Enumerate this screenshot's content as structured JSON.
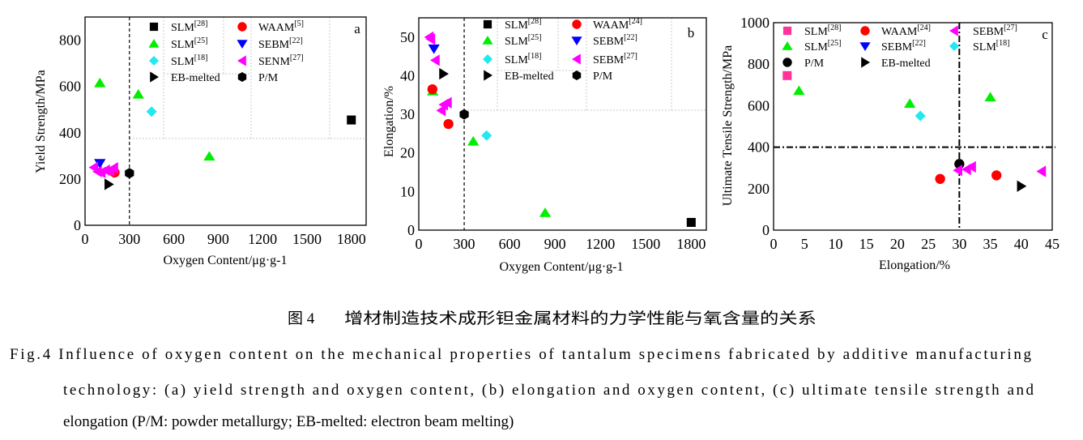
{
  "chart_data": [
    {
      "type": "scatter",
      "panel": "a",
      "xlabel": "Oxygen Content/μg·g-1",
      "ylabel": "Yield Strength/MPa",
      "xlim": [
        0,
        1900
      ],
      "ylim": [
        0,
        900
      ],
      "xticks": [
        "0",
        "300",
        "600",
        "900",
        "1200",
        "1500",
        "1800"
      ],
      "xtick_values": [
        0,
        300,
        600,
        900,
        1200,
        1500,
        1800
      ],
      "yticks": [
        "0",
        "200",
        "400",
        "600",
        "800"
      ],
      "ytick_values": [
        0,
        200,
        400,
        600,
        800
      ],
      "ref_lines": [
        {
          "axis": "x",
          "value": 300,
          "style": "dashed"
        }
      ],
      "legend_columns": [
        [
          0,
          1,
          2,
          3
        ],
        [
          4,
          5,
          6,
          7
        ]
      ],
      "series": [
        {
          "name": "SLM",
          "ref": "[28]",
          "marker": "square",
          "color": "#000000",
          "points": [
            [
              1800,
              455
            ]
          ]
        },
        {
          "name": "SLM",
          "ref": "[25]",
          "marker": "triangle-up",
          "color": "#00ee00",
          "points": [
            [
              100,
              615
            ],
            [
              360,
              566
            ],
            [
              840,
              298
            ]
          ]
        },
        {
          "name": "SLM",
          "ref": "[18]",
          "marker": "diamond",
          "color": "#22e8f2",
          "points": [
            [
              450,
              491
            ]
          ]
        },
        {
          "name": "EB-melted",
          "ref": "",
          "marker": "triangle-right",
          "color": "#000000",
          "points": [
            [
              160,
              177
            ]
          ]
        },
        {
          "name": "WAAM",
          "ref": "[5]",
          "marker": "circle",
          "color": "#ff0000",
          "points": [
            [
              200,
              228
            ]
          ]
        },
        {
          "name": "SEBM",
          "ref": "[22]",
          "marker": "triangle-down",
          "color": "#0000ff",
          "points": [
            [
              100,
              268
            ]
          ]
        },
        {
          "name": "SENM",
          "ref": "[27]",
          "marker": "triangle-left",
          "color": "#ff00ff",
          "points": [
            [
              60,
              250
            ],
            [
              85,
              232
            ],
            [
              110,
              228
            ],
            [
              140,
              238
            ],
            [
              170,
              235
            ],
            [
              195,
              248
            ]
          ]
        },
        {
          "name": "P/M",
          "ref": "",
          "marker": "hexagon",
          "color": "#000000",
          "points": [
            [
              300,
              225
            ]
          ]
        }
      ]
    },
    {
      "type": "scatter",
      "panel": "b",
      "xlabel": "Oxygen Content/μg·g-1",
      "ylabel": "Elongation/%",
      "xlim": [
        0,
        1900
      ],
      "ylim": [
        0,
        55
      ],
      "xticks": [
        "0",
        "300",
        "600",
        "900",
        "1200",
        "1500",
        "1800"
      ],
      "xtick_values": [
        0,
        300,
        600,
        900,
        1200,
        1500,
        1800
      ],
      "yticks": [
        "0",
        "10",
        "20",
        "30",
        "40",
        "50"
      ],
      "ytick_values": [
        0,
        10,
        20,
        30,
        40,
        50
      ],
      "ref_lines": [
        {
          "axis": "x",
          "value": 300,
          "style": "dashed"
        }
      ],
      "legend_columns": [
        [
          0,
          1,
          2,
          3
        ],
        [
          4,
          5,
          6,
          7
        ]
      ],
      "series": [
        {
          "name": "SLM",
          "ref": "[28]",
          "marker": "square",
          "color": "#000000",
          "points": [
            [
              1800,
              2
            ]
          ]
        },
        {
          "name": "SLM",
          "ref": "[25]",
          "marker": "triangle-up",
          "color": "#00ee00",
          "points": [
            [
              92,
              36
            ],
            [
              360,
              23
            ],
            [
              835,
              4.5
            ]
          ]
        },
        {
          "name": "SLM",
          "ref": "[18]",
          "marker": "diamond",
          "color": "#22e8f2",
          "points": [
            [
              448,
              24.5
            ]
          ]
        },
        {
          "name": "EB-melted",
          "ref": "",
          "marker": "triangle-right",
          "color": "#000000",
          "points": [
            [
              163,
              40.5
            ]
          ]
        },
        {
          "name": "WAAM",
          "ref": "[24]",
          "marker": "circle",
          "color": "#ff0000",
          "points": [
            [
              90,
              36.5
            ],
            [
              196,
              27.5
            ]
          ]
        },
        {
          "name": "SEBM",
          "ref": "[22]",
          "marker": "triangle-down",
          "color": "#0000ff",
          "points": [
            [
              100,
              47
            ]
          ]
        },
        {
          "name": "SEBM",
          "ref": "[27]",
          "marker": "triangle-left",
          "color": "#ff00ff",
          "points": [
            [
              70,
              50
            ],
            [
              80,
              49.5
            ],
            [
              110,
              44
            ],
            [
              150,
              31
            ],
            [
              165,
              32.5
            ],
            [
              190,
              33
            ]
          ]
        },
        {
          "name": "P/M",
          "ref": "",
          "marker": "hexagon",
          "color": "#000000",
          "points": [
            [
              300,
              30
            ]
          ]
        }
      ]
    },
    {
      "type": "scatter",
      "panel": "c",
      "xlabel": "Elongation/%",
      "ylabel": "Ultimate Tensile Strength/MPa",
      "xlim": [
        0,
        45
      ],
      "ylim": [
        0,
        1000
      ],
      "xticks": [
        "0",
        "5",
        "10",
        "15",
        "20",
        "25",
        "30",
        "35",
        "40",
        "45"
      ],
      "xtick_values": [
        0,
        5,
        10,
        15,
        20,
        25,
        30,
        35,
        40,
        45
      ],
      "yticks": [
        "0",
        "200",
        "400",
        "600",
        "800",
        "1000"
      ],
      "ytick_values": [
        0,
        200,
        400,
        600,
        800,
        1000
      ],
      "ref_lines": [
        {
          "axis": "x",
          "value": 30,
          "style": "dash-dot"
        },
        {
          "axis": "y",
          "value": 400,
          "style": "dash-dot"
        }
      ],
      "legend_columns": [
        [
          0,
          1,
          2
        ],
        [
          3,
          4,
          5
        ],
        [
          6,
          7
        ]
      ],
      "series": [
        {
          "name": "SLM",
          "ref": "[28]",
          "marker": "square",
          "color": "#ff3399",
          "points": [
            [
              2.2,
              745
            ]
          ]
        },
        {
          "name": "SLM",
          "ref": "[25]",
          "marker": "triangle-up",
          "color": "#00ee00",
          "points": [
            [
              4.1,
              672
            ],
            [
              22,
              610
            ],
            [
              35,
              641
            ]
          ]
        },
        {
          "name": "P/M",
          "ref": "",
          "marker": "circle",
          "color": "#000000",
          "points": [
            [
              30,
              319
            ]
          ]
        },
        {
          "name": "WAAM",
          "ref": "[24]",
          "marker": "circle",
          "color": "#ff0000",
          "points": [
            [
              26.9,
              247
            ],
            [
              36,
              264
            ]
          ]
        },
        {
          "name": "SEBM",
          "ref": "[22]",
          "marker": "triangle-down",
          "color": "#0000ff",
          "points": []
        },
        {
          "name": "EB-melted",
          "ref": "",
          "marker": "triangle-right",
          "color": "#000000",
          "points": [
            [
              40,
              212
            ]
          ]
        },
        {
          "name": "SEBM",
          "ref": "[27]",
          "marker": "triangle-left",
          "color": "#ff00ff",
          "points": [
            [
              29.8,
              288
            ],
            [
              31.2,
              293
            ],
            [
              32,
              305
            ],
            [
              43.3,
              283
            ]
          ]
        },
        {
          "name": "SLM",
          "ref": "[18]",
          "marker": "diamond",
          "color": "#22e8f2",
          "points": [
            [
              23.7,
              551
            ]
          ]
        }
      ]
    }
  ],
  "caption": {
    "cn_label": "图 4",
    "cn_title": "增材制造技术成形钽金属材料的力学性能与氧含量的关系",
    "en_line1": "Fig.4  Influence of oxygen content on the mechanical properties of tantalum specimens fabricated by additive manufacturing",
    "en_line2": "technology: (a) yield strength and oxygen content, (b) elongation and oxygen content, (c) ultimate tensile strength and",
    "en_line3": "elongation (P/M: powder metallurgy; EB-melted: electron beam melting)"
  }
}
